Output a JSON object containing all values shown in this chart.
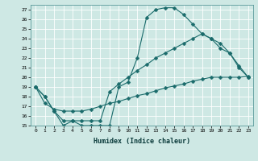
{
  "xlabel": "Humidex (Indice chaleur)",
  "xlim": [
    -0.5,
    23.5
  ],
  "ylim": [
    15,
    27.5
  ],
  "yticks": [
    15,
    16,
    17,
    18,
    19,
    20,
    21,
    22,
    23,
    24,
    25,
    26,
    27
  ],
  "xticks": [
    0,
    1,
    2,
    3,
    4,
    5,
    6,
    7,
    8,
    9,
    10,
    11,
    12,
    13,
    14,
    15,
    16,
    17,
    18,
    19,
    20,
    21,
    22,
    23
  ],
  "background_color": "#cee8e4",
  "grid_color": "#ffffff",
  "line_color": "#1a6b6b",
  "line1_x": [
    0,
    1,
    2,
    3,
    4,
    5,
    6,
    7,
    8,
    9,
    10,
    11,
    12,
    13,
    14,
    15,
    16,
    17,
    18,
    19,
    20,
    21,
    22,
    23
  ],
  "line1_y": [
    19,
    18,
    16.5,
    15,
    15.5,
    15,
    15,
    15,
    15,
    19,
    19.5,
    22,
    26.2,
    27,
    27.2,
    27.2,
    26.5,
    25.5,
    24.5,
    24,
    23.5,
    22.5,
    21,
    20
  ],
  "line2_x": [
    0,
    1,
    2,
    3,
    4,
    5,
    6,
    7,
    8,
    9,
    10,
    11,
    12,
    13,
    14,
    15,
    16,
    17,
    18,
    19,
    20,
    21,
    22,
    23
  ],
  "line2_y": [
    19,
    18,
    16.5,
    15.5,
    15.5,
    15.5,
    15.5,
    15.5,
    18.5,
    19.3,
    20,
    20.7,
    21.3,
    22,
    22.5,
    23,
    23.5,
    24,
    24.5,
    24,
    23,
    22.5,
    21.2,
    20
  ],
  "line3_x": [
    0,
    1,
    2,
    3,
    4,
    5,
    6,
    7,
    8,
    9,
    10,
    11,
    12,
    13,
    14,
    15,
    16,
    17,
    18,
    19,
    20,
    21,
    22,
    23
  ],
  "line3_y": [
    19,
    17.3,
    16.7,
    16.5,
    16.5,
    16.5,
    16.7,
    17.0,
    17.3,
    17.5,
    17.8,
    18.1,
    18.3,
    18.6,
    18.9,
    19.1,
    19.3,
    19.6,
    19.8,
    20.0,
    20.0,
    20.0,
    20.0,
    20.1
  ],
  "markersize": 2.5
}
